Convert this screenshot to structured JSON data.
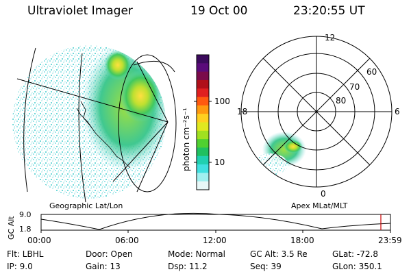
{
  "header": {
    "instrument": "Ultraviolet Imager",
    "date": "19 Oct 00",
    "time": "23:20:55 UT"
  },
  "colorbar": {
    "label": "photon cm⁻²s⁻¹",
    "ticks": [
      "100",
      "10"
    ]
  },
  "geo_panel": {
    "label": "Geographic Lat/Lon"
  },
  "polar_panel": {
    "label": "Apex MLat/MLT",
    "mlt_labels": {
      "top": "12",
      "left": "18",
      "right": "6",
      "bottom": "0"
    },
    "lat_labels": [
      "60",
      "70",
      "80"
    ]
  },
  "altitude_plot": {
    "ylabel": "GC Alt",
    "yticks": [
      "9.0",
      "1.8"
    ],
    "xticks": [
      "00:00",
      "06:00",
      "12:00",
      "18:00",
      "23:59"
    ]
  },
  "info": {
    "flt": "Flt: LBHL",
    "ip": "IP: 9.0",
    "door": "Door: Open",
    "gain": "Gain: 13",
    "mode": "Mode: Normal",
    "dsp": "Dsp:   11.2",
    "gcalt": "GC Alt: 3.5 Re",
    "seq": "Seq: 39",
    "glat": "GLat: -72.8",
    "glon": "GLon: 350.1"
  },
  "colors": {
    "cb": [
      "#3b0a5c",
      "#5a0a7a",
      "#7a0a4a",
      "#b0101a",
      "#e02020",
      "#ff5a10",
      "#ff9a10",
      "#ffd020",
      "#e0e820",
      "#a0e020",
      "#50d030",
      "#20c060",
      "#20d0b0",
      "#40e0e0",
      "#a0f0f0",
      "#e8f8f8"
    ],
    "time_marker": "#cc0000"
  }
}
